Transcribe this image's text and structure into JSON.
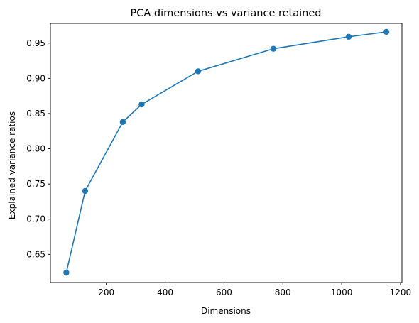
{
  "chart_data": {
    "type": "line",
    "title": "PCA dimensions vs variance retained",
    "xlabel": "Dimensions",
    "ylabel": "Explained variance ratios",
    "xlim": [
      10,
      1205
    ],
    "ylim": [
      0.61,
      0.978
    ],
    "x_ticks": [
      200,
      400,
      600,
      800,
      1000,
      1200
    ],
    "x_tick_labels": [
      "200",
      "400",
      "600",
      "800",
      "1000",
      "1200"
    ],
    "y_ticks": [
      0.65,
      0.7,
      0.75,
      0.8,
      0.85,
      0.9,
      0.95
    ],
    "y_tick_labels": [
      "0.65",
      "0.70",
      "0.75",
      "0.80",
      "0.85",
      "0.90",
      "0.95"
    ],
    "grid": false,
    "series": [
      {
        "color": "#1f77b4",
        "marker": "circle",
        "points": [
          {
            "x": 64,
            "y": 0.624
          },
          {
            "x": 128,
            "y": 0.74
          },
          {
            "x": 256,
            "y": 0.838
          },
          {
            "x": 320,
            "y": 0.863
          },
          {
            "x": 512,
            "y": 0.91
          },
          {
            "x": 768,
            "y": 0.942
          },
          {
            "x": 1024,
            "y": 0.959
          },
          {
            "x": 1152,
            "y": 0.966
          }
        ]
      }
    ]
  }
}
